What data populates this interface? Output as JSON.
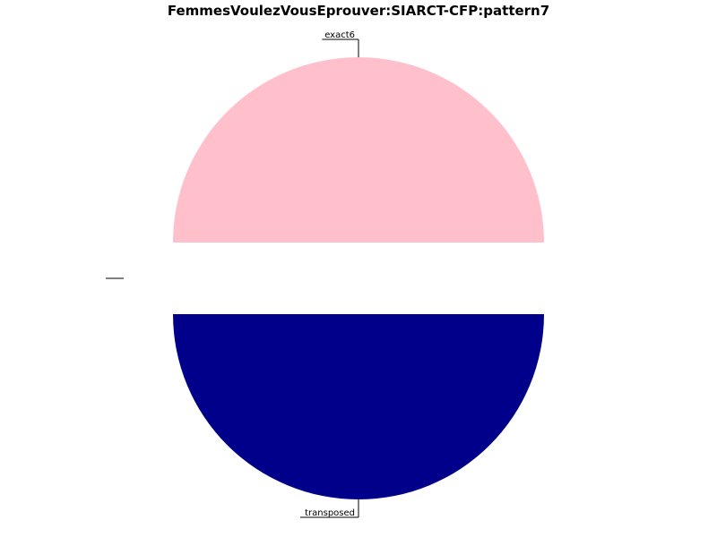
{
  "chart_data": {
    "type": "pie",
    "title": "FemmesVoulezVousEprouver:SIARCT-CFP:pattern7",
    "slices": [
      {
        "label": "exact6",
        "value": 50,
        "color": "#FFC0CB"
      },
      {
        "label": "transposed",
        "value": 50,
        "color": "#00008B"
      },
      {
        "label": "",
        "value": 0,
        "color": "#000000"
      },
      {
        "label": "",
        "value": 0,
        "color": "#000000"
      }
    ],
    "legend": "none"
  }
}
